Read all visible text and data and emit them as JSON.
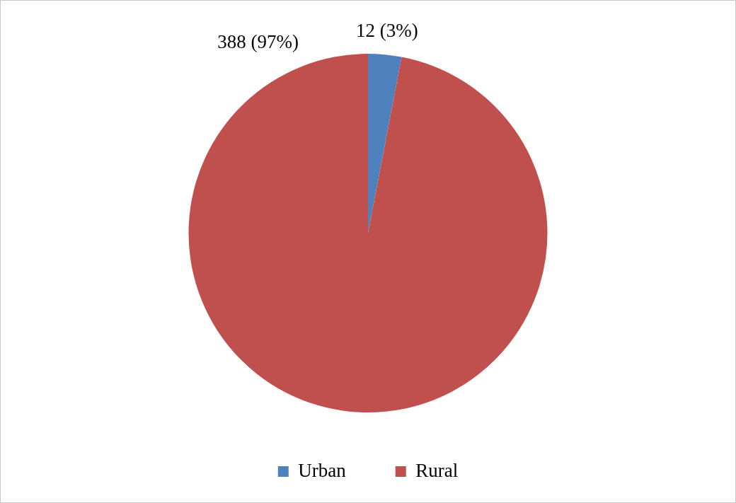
{
  "chart_data": {
    "type": "pie",
    "categories": [
      "Urban",
      "Rural"
    ],
    "values": [
      12,
      388
    ],
    "colors": [
      "#4f81bd",
      "#c0504d"
    ],
    "value_labels": [
      "12 (3%)",
      "388 (97%)"
    ],
    "legend": "bottom"
  }
}
